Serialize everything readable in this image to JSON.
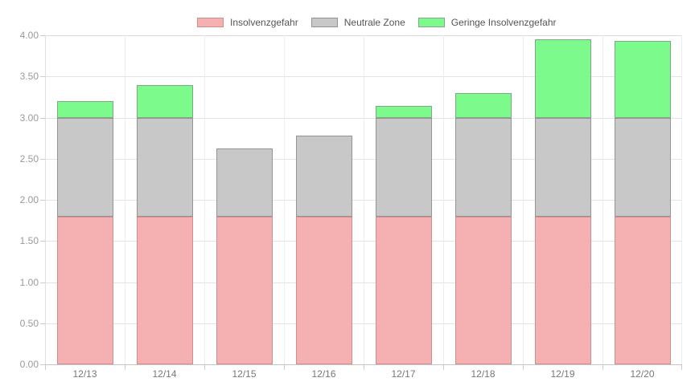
{
  "chart_data": {
    "type": "bar",
    "stacked": true,
    "title": "",
    "xlabel": "",
    "ylabel": "",
    "categories": [
      "12/13",
      "12/14",
      "12/15",
      "12/16",
      "12/17",
      "12/18",
      "12/19",
      "12/20"
    ],
    "series": [
      {
        "name": "Insolvenzgefahr",
        "color": "#F5B1B1",
        "border_color": "#CE8F8F",
        "values": [
          1.8,
          1.8,
          1.8,
          1.8,
          1.8,
          1.8,
          1.8,
          1.8
        ]
      },
      {
        "name": "Neutrale Zone",
        "color": "#C8C8C8",
        "border_color": "#949494",
        "values": [
          1.2,
          1.2,
          0.82,
          0.98,
          1.2,
          1.2,
          1.2,
          1.2
        ]
      },
      {
        "name": "Geringe Insolvenzgefahr",
        "color": "#7DFA8C",
        "border_color": "#80A886",
        "values": [
          0.2,
          0.4,
          0.0,
          0.0,
          0.14,
          0.3,
          0.95,
          0.93
        ]
      }
    ],
    "totals": [
      3.2,
      3.4,
      2.62,
      2.78,
      3.14,
      3.3,
      3.95,
      3.93
    ],
    "ylim": [
      0,
      4
    ],
    "y_tick_step": 0.5,
    "y_tick_labels": [
      "4.00",
      "3.50",
      "3.00",
      "2.50",
      "2.00",
      "1.50",
      "1.00",
      "0.50",
      "0.00"
    ],
    "legend_position": "top",
    "grid": true
  }
}
